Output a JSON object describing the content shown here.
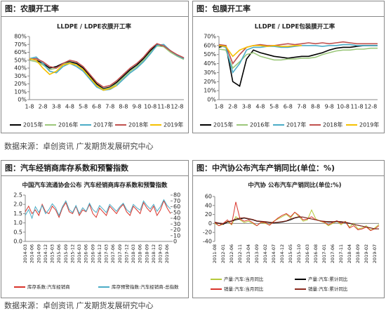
{
  "headers": [
    "图：农膜开工率",
    "图：包膜开工率",
    "图：汽车经销商库存系数和预警指数",
    "图：中汽协公布汽车产销同比(单位：%)"
  ],
  "sources": [
    "数据来源：卓创资讯   广发期货发展研究中心",
    "数据来源：卓创资讯   广发期货发展研究中心"
  ],
  "chart_data": [
    {
      "type": "line",
      "title": "LLDPE / LDPE农膜开工率",
      "grid": false,
      "categories": [
        "1-8",
        null,
        "2-8",
        null,
        "3-8",
        null,
        "4-8",
        null,
        "5-8",
        null,
        "6-8",
        null,
        "7-8",
        null,
        "8-8",
        null,
        "9-8",
        null,
        "10-8",
        null,
        "11-8",
        null,
        "12-8",
        null
      ],
      "ylim": [
        0,
        80
      ],
      "yticks": [
        {
          "value": 0,
          "label": "0%"
        },
        {
          "value": 10,
          "label": "10%"
        },
        {
          "value": 20,
          "label": "20%"
        },
        {
          "value": 30,
          "label": "30%"
        },
        {
          "value": 40,
          "label": "40%"
        },
        {
          "value": 50,
          "label": "50%"
        },
        {
          "value": 60,
          "label": "60%"
        },
        {
          "value": 70,
          "label": "70%"
        },
        {
          "value": 80,
          "label": "80%"
        }
      ],
      "series": [
        {
          "name": "2015年",
          "color": "#000000",
          "values": [
            52,
            50,
            46,
            40,
            42,
            46,
            48,
            46,
            40,
            30,
            20,
            14,
            16,
            22,
            30,
            38,
            44,
            52,
            62,
            70,
            68,
            62,
            56,
            52
          ]
        },
        {
          "name": "2016年",
          "color": "#9bc77a",
          "values": [
            50,
            48,
            44,
            38,
            40,
            45,
            47,
            44,
            38,
            28,
            18,
            13,
            15,
            20,
            28,
            36,
            42,
            50,
            60,
            68,
            67,
            60,
            55,
            51
          ]
        },
        {
          "name": "2017年",
          "color": "#4bacc6",
          "values": [
            52,
            54,
            46,
            36,
            34,
            42,
            46,
            42,
            36,
            26,
            16,
            12,
            13,
            18,
            26,
            34,
            40,
            48,
            58,
            69,
            70,
            62,
            56,
            52
          ]
        },
        {
          "name": "2018年",
          "color": "#c0504d",
          "values": [
            51,
            52,
            48,
            42,
            40,
            46,
            50,
            48,
            42,
            32,
            22,
            16,
            18,
            24,
            32,
            40,
            46,
            54,
            64,
            71,
            68,
            62,
            57,
            53
          ]
        },
        {
          "name": "2019年",
          "color": "#f5c000",
          "values": [
            52,
            50,
            40,
            32,
            36,
            44,
            46,
            44,
            38,
            28,
            18,
            12,
            14,
            18,
            null,
            null,
            null,
            null,
            null,
            null,
            null,
            null,
            null,
            null
          ]
        }
      ]
    },
    {
      "type": "line",
      "title": "LLDPE / LDPE包装膜开工率",
      "grid": false,
      "categories": [
        "1-8",
        null,
        "2-8",
        null,
        "3-8",
        null,
        "4-8",
        null,
        "5-8",
        null,
        "6-8",
        null,
        "7-8",
        null,
        "8-8",
        null,
        "9-8",
        null,
        "10-8",
        null,
        "11-8",
        null,
        "12-8",
        null
      ],
      "ylim": [
        0,
        70
      ],
      "yticks": [
        {
          "value": 0,
          "label": "0%"
        },
        {
          "value": 10,
          "label": "10%"
        },
        {
          "value": 20,
          "label": "20%"
        },
        {
          "value": 30,
          "label": "30%"
        },
        {
          "value": 40,
          "label": "40%"
        },
        {
          "value": 50,
          "label": "50%"
        },
        {
          "value": 60,
          "label": "60%"
        },
        {
          "value": 70,
          "label": "70%"
        }
      ],
      "series": [
        {
          "name": "2015年",
          "color": "#000000",
          "values": [
            58,
            60,
            20,
            15,
            45,
            55,
            52,
            50,
            48,
            47,
            46,
            47,
            48,
            48,
            50,
            52,
            55,
            57,
            58,
            58,
            59,
            60,
            60,
            60
          ]
        },
        {
          "name": "2016年",
          "color": "#9bc77a",
          "values": [
            56,
            55,
            35,
            42,
            50,
            52,
            48,
            46,
            44,
            44,
            45,
            45,
            46,
            46,
            47,
            50,
            52,
            54,
            55,
            55,
            56,
            56,
            57,
            57
          ]
        },
        {
          "name": "2017年",
          "color": "#4bacc6",
          "values": [
            60,
            58,
            30,
            40,
            55,
            58,
            58,
            59,
            59,
            58,
            58,
            59,
            60,
            60,
            60,
            59,
            60,
            60,
            61,
            61,
            60,
            60,
            60,
            60
          ]
        },
        {
          "name": "2018年",
          "color": "#c0504d",
          "values": [
            61,
            60,
            40,
            50,
            58,
            60,
            61,
            60,
            60,
            61,
            62,
            61,
            62,
            63,
            62,
            63,
            62,
            63,
            64,
            63,
            62,
            62,
            62,
            62
          ]
        },
        {
          "name": "2019年",
          "color": "#f5c000",
          "values": [
            60,
            59,
            48,
            55,
            58,
            60,
            60,
            59,
            60,
            59,
            59,
            60,
            60,
            null,
            null,
            null,
            null,
            null,
            null,
            null,
            null,
            null,
            null,
            null
          ]
        }
      ]
    },
    {
      "type": "line",
      "title": "中国汽车流通协会公布 汽车经销商库存系数和预警指数",
      "grid": false,
      "categories": [
        "2014-03",
        null,
        "2014-06",
        null,
        "2014-09",
        null,
        "2014-12",
        null,
        "2015-03",
        null,
        "2015-06",
        null,
        "2015-09",
        null,
        "2015-12",
        null,
        "2016-03",
        null,
        "2016-06",
        null,
        "2016-09",
        null,
        "2016-12",
        null,
        "2017-03",
        null,
        "2017-06",
        null,
        "2017-09",
        null,
        "2017-12",
        null,
        "2018-03",
        null,
        "2018-06",
        null,
        "2018-09",
        null,
        "2018-12",
        null,
        "2019-03",
        null,
        "2019-06",
        null
      ],
      "ylim": [
        0,
        2.5
      ],
      "yticks": [
        {
          "value": 0,
          "label": "0.0"
        },
        0.5,
        {
          "value": 1,
          "label": "1.0"
        },
        1.5,
        {
          "value": 2,
          "label": "2.0"
        },
        2.5
      ],
      "y2lim": [
        0,
        80
      ],
      "y2ticks": [
        0,
        10,
        20,
        30,
        40,
        50,
        60,
        70,
        80
      ],
      "series": [
        {
          "name": "库存系数:汽车经销商",
          "color": "#d9342b",
          "values": [
            1.6,
            1.9,
            1.5,
            1.7,
            1.4,
            2.0,
            1.6,
            1.5,
            1.9,
            1.7,
            1.3,
            1.8,
            2.1,
            1.6,
            1.5,
            1.9,
            1.4,
            1.7,
            1.6,
            2.0,
            1.5,
            1.3,
            1.8,
            1.6,
            1.4,
            1.9,
            1.7,
            1.5,
            1.8,
            2.0,
            1.6,
            1.4,
            1.9,
            1.7,
            1.5,
            2.1,
            1.8,
            1.6,
            1.9,
            1.4,
            1.7,
            2.2,
            1.8,
            1.5
          ]
        },
        {
          "name": "库存预警指数:汽车经销商-总指数",
          "color": "#4bacc6",
          "axis": "y2",
          "values": [
            45,
            55,
            40,
            60,
            50,
            62,
            48,
            55,
            65,
            58,
            45,
            60,
            70,
            55,
            50,
            62,
            48,
            58,
            52,
            66,
            55,
            50,
            62,
            56,
            50,
            64,
            58,
            52,
            60,
            66,
            55,
            50,
            64,
            58,
            54,
            70,
            62,
            56,
            64,
            52,
            60,
            72,
            62,
            56
          ]
        }
      ]
    },
    {
      "type": "line",
      "title": "中汽协 公布汽车产销同比(单位:%)",
      "grid": false,
      "categories": [
        "2011-08",
        null,
        "2012-01",
        null,
        "2012-06",
        null,
        "2012-11",
        null,
        "2013-04",
        null,
        "2013-09",
        null,
        "2014-02",
        null,
        "2014-07",
        null,
        "2014-12",
        null,
        "2015-05",
        null,
        "2015-10",
        null,
        "2016-03",
        null,
        "2016-08",
        null,
        "2017-01",
        null,
        "2017-06",
        null,
        "2017-11",
        null,
        "2018-04",
        null,
        "2018-09",
        null,
        "2019-02",
        null,
        "2019-07",
        null
      ],
      "ylim": [
        -40,
        60
      ],
      "yticks": [
        -40,
        -20,
        0,
        20,
        40,
        60
      ],
      "series": [
        {
          "name": "产量:汽车:当月同比",
          "color": "#b5c93a",
          "values": [
            0,
            -5,
            -2,
            5,
            -3,
            15,
            8,
            2,
            5,
            0,
            -5,
            2,
            0,
            -3,
            5,
            10,
            15,
            20,
            12,
            25,
            15,
            5,
            8,
            30,
            10,
            5,
            2,
            -5,
            0,
            5,
            -3,
            5,
            -8,
            0,
            -12,
            -10,
            -5,
            -15,
            -10,
            -2
          ]
        },
        {
          "name": "产量:汽车:累计同比",
          "color": "#000000",
          "values": [
            2,
            0,
            -2,
            3,
            5,
            8,
            10,
            12,
            10,
            8,
            5,
            4,
            3,
            2,
            1,
            2,
            3,
            5,
            8,
            12,
            14,
            14,
            12,
            10,
            8,
            6,
            4,
            3,
            3,
            4,
            3,
            2,
            0,
            -2,
            -4,
            -6,
            -8,
            -10,
            -12,
            -12
          ]
        },
        {
          "name": "销量:汽车:当月同比",
          "color": "#d9342b",
          "values": [
            2,
            -5,
            0,
            8,
            -2,
            48,
            10,
            5,
            8,
            2,
            -5,
            3,
            2,
            -4,
            4,
            12,
            18,
            22,
            15,
            25,
            18,
            8,
            10,
            15,
            8,
            6,
            3,
            -3,
            2,
            6,
            0,
            4,
            -10,
            -5,
            -14,
            -12,
            -8,
            -16,
            -12,
            -5
          ]
        },
        {
          "name": "销量:汽车:累计同比",
          "color": "#8b2a1e",
          "values": [
            3,
            1,
            0,
            4,
            6,
            10,
            12,
            13,
            11,
            9,
            6,
            5,
            4,
            3,
            2,
            3,
            4,
            6,
            10,
            13,
            15,
            14,
            12,
            10,
            8,
            6,
            5,
            4,
            4,
            5,
            4,
            3,
            1,
            -2,
            -4,
            -6,
            -8,
            -10,
            -12,
            -12
          ]
        }
      ]
    }
  ]
}
